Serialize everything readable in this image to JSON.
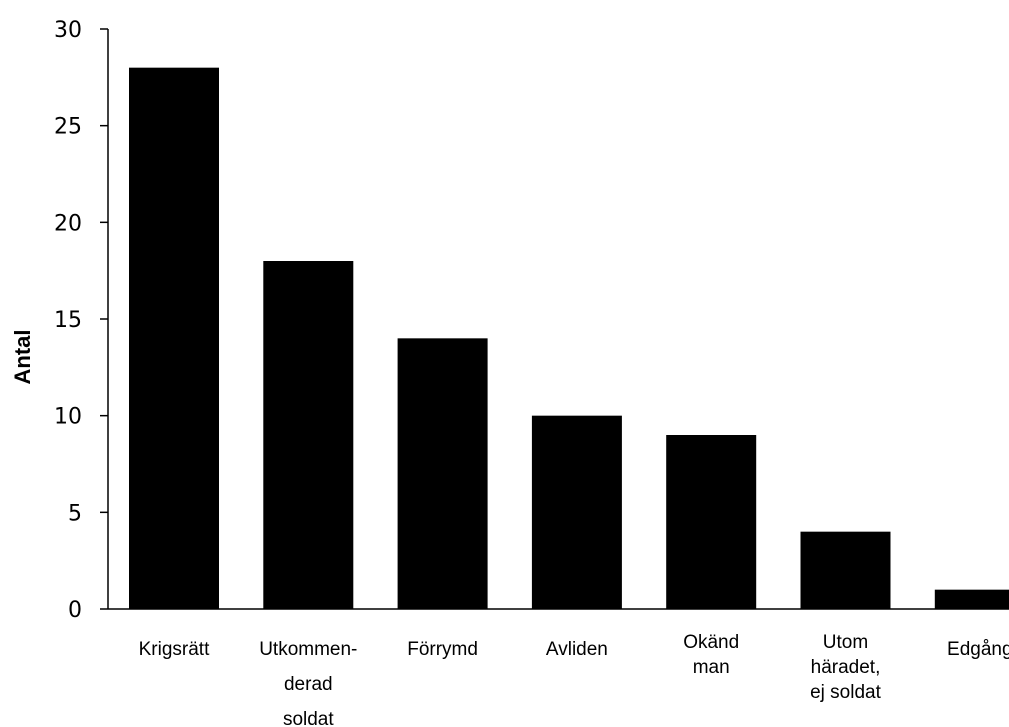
{
  "chart_data": {
    "type": "bar",
    "title": "",
    "xlabel": "",
    "ylabel": "Antal",
    "ylim": [
      0,
      30
    ],
    "yticks": [
      "0",
      "5",
      "10",
      "15",
      "20",
      "25",
      "30"
    ],
    "grid": false,
    "legend": "none",
    "bar_color": "#000000",
    "categories": [
      [
        "Krigsrätt"
      ],
      [
        "Utkommen-",
        "derad",
        "soldat"
      ],
      [
        "Förrymd"
      ],
      [
        "Avliden"
      ],
      [
        "Okänd",
        "man"
      ],
      [
        "Utom",
        "häradet,",
        "ej soldat"
      ],
      [
        "Edgång"
      ]
    ],
    "values": [
      28,
      18,
      14,
      10,
      9,
      4,
      1
    ]
  }
}
